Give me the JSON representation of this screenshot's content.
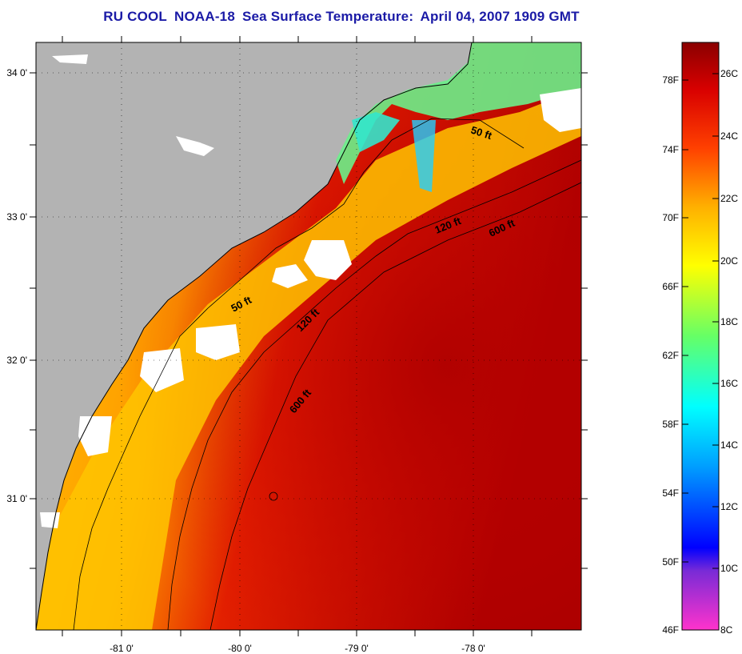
{
  "title": {
    "org": "RU COOL",
    "satellite": "NOAA-18",
    "product": "Sea Surface Temperature:",
    "date": "April 04, 2007 1909 GMT"
  },
  "map": {
    "lat_labels": [
      "34 0'",
      "33 0'",
      "32 0'",
      "31 0'"
    ],
    "lon_labels": [
      "-81 0'",
      "-80 0'",
      "-79 0'",
      "-78 0'"
    ],
    "contour_labels": [
      "50 ft",
      "120 ft",
      "600 ft",
      "50 ft",
      "120 ft",
      "600 ft"
    ],
    "colors": {
      "land": "#b3b3b3",
      "cloud": "#ffffff",
      "warm": "#c80000",
      "cool": "#ffd400",
      "coastal": "#33ffcc"
    }
  },
  "colorbar": {
    "fahrenheit_labels": [
      "78F",
      "74F",
      "70F",
      "66F",
      "62F",
      "58F",
      "54F",
      "50F",
      "46F"
    ],
    "celsius_labels": [
      "26C",
      "24C",
      "22C",
      "20C",
      "18C",
      "16C",
      "14C",
      "12C",
      "10C",
      "8C"
    ]
  }
}
